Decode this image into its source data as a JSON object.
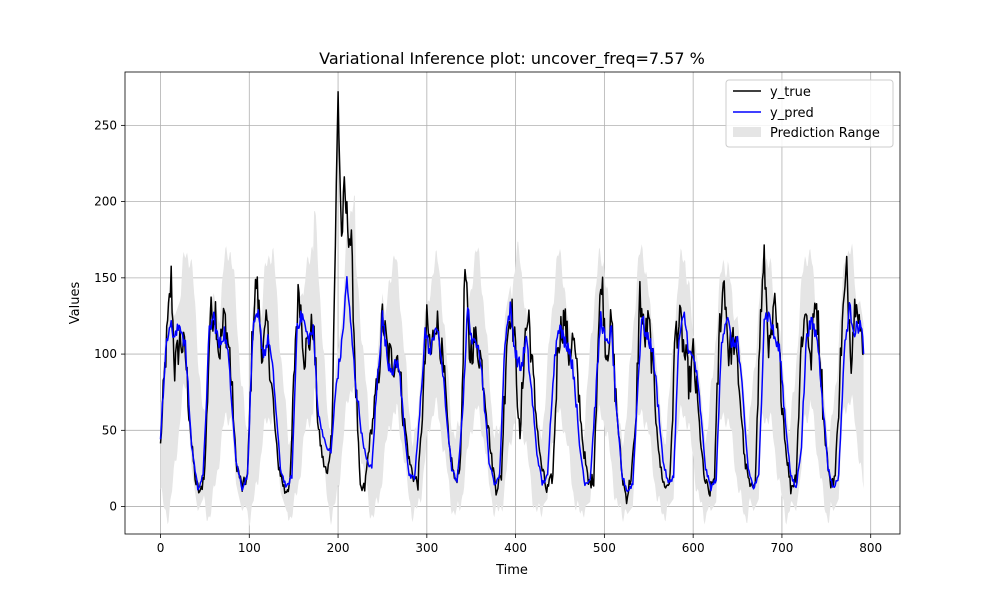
{
  "chart_data": {
    "type": "line",
    "title": "Variational Inference plot: uncover_freq=7.57 %",
    "xlabel": "Time",
    "ylabel": "Values",
    "xlim": [
      -40,
      833
    ],
    "ylim": [
      -18,
      285
    ],
    "xticks": [
      0,
      100,
      200,
      300,
      400,
      500,
      600,
      700,
      800
    ],
    "yticks": [
      0,
      50,
      100,
      150,
      200,
      250
    ],
    "grid": true,
    "legend_position": "top-right",
    "x_start": 0,
    "x_end": 792,
    "period": 46.6,
    "colors": {
      "y_true": "#000000",
      "y_pred": "#0000ff",
      "range": "#e5e5e5",
      "grid": "#b0b0b0"
    },
    "series": [
      {
        "name": "y_true",
        "keypoints": [
          [
            0,
            40
          ],
          [
            6,
            100
          ],
          [
            12,
            150
          ],
          [
            16,
            90
          ],
          [
            22,
            110
          ],
          [
            28,
            100
          ],
          [
            35,
            40
          ],
          [
            40,
            15
          ],
          [
            45,
            8
          ],
          [
            50,
            25
          ],
          [
            56,
            125
          ],
          [
            62,
            130
          ],
          [
            66,
            100
          ],
          [
            72,
            125
          ],
          [
            78,
            100
          ],
          [
            85,
            30
          ],
          [
            92,
            12
          ],
          [
            98,
            20
          ],
          [
            104,
            120
          ],
          [
            108,
            148
          ],
          [
            115,
            100
          ],
          [
            120,
            120
          ],
          [
            125,
            80
          ],
          [
            132,
            30
          ],
          [
            140,
            10
          ],
          [
            146,
            15
          ],
          [
            152,
            110
          ],
          [
            156,
            144
          ],
          [
            162,
            100
          ],
          [
            168,
            110
          ],
          [
            172,
            120
          ],
          [
            178,
            50
          ],
          [
            183,
            30
          ],
          [
            188,
            20
          ],
          [
            193,
            50
          ],
          [
            197,
            175
          ],
          [
            200,
            270
          ],
          [
            204,
            175
          ],
          [
            207,
            205
          ],
          [
            210,
            190
          ],
          [
            215,
            170
          ],
          [
            220,
            80
          ],
          [
            225,
            10
          ],
          [
            230,
            12
          ],
          [
            235,
            40
          ],
          [
            245,
            80
          ],
          [
            250,
            125
          ],
          [
            256,
            100
          ],
          [
            262,
            95
          ],
          [
            268,
            100
          ],
          [
            272,
            70
          ],
          [
            280,
            30
          ],
          [
            285,
            20
          ],
          [
            290,
            15
          ],
          [
            295,
            60
          ],
          [
            300,
            120
          ],
          [
            305,
            100
          ],
          [
            310,
            125
          ],
          [
            315,
            110
          ],
          [
            320,
            80
          ],
          [
            325,
            40
          ],
          [
            332,
            15
          ],
          [
            338,
            30
          ],
          [
            343,
            157
          ],
          [
            348,
            100
          ],
          [
            354,
            110
          ],
          [
            360,
            100
          ],
          [
            366,
            75
          ],
          [
            372,
            35
          ],
          [
            378,
            12
          ],
          [
            384,
            20
          ],
          [
            390,
            110
          ],
          [
            395,
            132
          ],
          [
            400,
            100
          ],
          [
            405,
            42
          ],
          [
            410,
            110
          ],
          [
            415,
            125
          ],
          [
            420,
            80
          ],
          [
            428,
            30
          ],
          [
            435,
            10
          ],
          [
            442,
            20
          ],
          [
            448,
            110
          ],
          [
            455,
            124
          ],
          [
            460,
            100
          ],
          [
            465,
            110
          ],
          [
            470,
            80
          ],
          [
            476,
            40
          ],
          [
            482,
            15
          ],
          [
            488,
            18
          ],
          [
            493,
            110
          ],
          [
            497,
            152
          ],
          [
            502,
            100
          ],
          [
            508,
            120
          ],
          [
            513,
            70
          ],
          [
            520,
            20
          ],
          [
            525,
            5
          ],
          [
            530,
            20
          ],
          [
            535,
            50
          ],
          [
            540,
            140
          ],
          [
            545,
            110
          ],
          [
            550,
            120
          ],
          [
            556,
            80
          ],
          [
            562,
            30
          ],
          [
            568,
            12
          ],
          [
            574,
            18
          ],
          [
            580,
            115
          ],
          [
            586,
            120
          ],
          [
            590,
            100
          ],
          [
            596,
            80
          ],
          [
            600,
            100
          ],
          [
            606,
            60
          ],
          [
            612,
            20
          ],
          [
            618,
            8
          ],
          [
            624,
            20
          ],
          [
            630,
            120
          ],
          [
            635,
            150
          ],
          [
            640,
            100
          ],
          [
            646,
            110
          ],
          [
            652,
            80
          ],
          [
            658,
            30
          ],
          [
            665,
            10
          ],
          [
            670,
            20
          ],
          [
            676,
            125
          ],
          [
            680,
            160
          ],
          [
            686,
            100
          ],
          [
            692,
            130
          ],
          [
            698,
            90
          ],
          [
            704,
            40
          ],
          [
            710,
            12
          ],
          [
            716,
            20
          ],
          [
            722,
            110
          ],
          [
            728,
            130
          ],
          [
            732,
            90
          ],
          [
            738,
            140
          ],
          [
            742,
            110
          ],
          [
            748,
            50
          ],
          [
            754,
            15
          ],
          [
            760,
            20
          ],
          [
            768,
            120
          ],
          [
            773,
            154
          ],
          [
            778,
            100
          ],
          [
            784,
            145
          ],
          [
            789,
            110
          ],
          [
            792,
            95
          ]
        ]
      },
      {
        "name": "y_pred",
        "keypoints": [
          [
            0,
            45
          ],
          [
            5,
            95
          ],
          [
            10,
            122
          ],
          [
            16,
            110
          ],
          [
            22,
            120
          ],
          [
            28,
            105
          ],
          [
            35,
            40
          ],
          [
            42,
            12
          ],
          [
            48,
            20
          ],
          [
            55,
            115
          ],
          [
            60,
            125
          ],
          [
            66,
            105
          ],
          [
            72,
            115
          ],
          [
            78,
            90
          ],
          [
            85,
            30
          ],
          [
            92,
            12
          ],
          [
            98,
            20
          ],
          [
            104,
            115
          ],
          [
            110,
            125
          ],
          [
            116,
            100
          ],
          [
            122,
            110
          ],
          [
            128,
            80
          ],
          [
            135,
            25
          ],
          [
            142,
            12
          ],
          [
            148,
            20
          ],
          [
            154,
            120
          ],
          [
            160,
            125
          ],
          [
            166,
            110
          ],
          [
            172,
            115
          ],
          [
            178,
            60
          ],
          [
            186,
            40
          ],
          [
            192,
            35
          ],
          [
            198,
            80
          ],
          [
            204,
            105
          ],
          [
            210,
            150
          ],
          [
            214,
            120
          ],
          [
            220,
            80
          ],
          [
            226,
            50
          ],
          [
            232,
            30
          ],
          [
            238,
            25
          ],
          [
            244,
            80
          ],
          [
            250,
            125
          ],
          [
            256,
            95
          ],
          [
            262,
            90
          ],
          [
            268,
            95
          ],
          [
            274,
            55
          ],
          [
            280,
            20
          ],
          [
            286,
            18
          ],
          [
            292,
            60
          ],
          [
            298,
            115
          ],
          [
            304,
            100
          ],
          [
            310,
            120
          ],
          [
            316,
            100
          ],
          [
            322,
            60
          ],
          [
            328,
            25
          ],
          [
            334,
            15
          ],
          [
            340,
            60
          ],
          [
            346,
            130
          ],
          [
            352,
            105
          ],
          [
            358,
            110
          ],
          [
            364,
            75
          ],
          [
            370,
            30
          ],
          [
            376,
            15
          ],
          [
            382,
            20
          ],
          [
            388,
            110
          ],
          [
            394,
            130
          ],
          [
            400,
            100
          ],
          [
            406,
            90
          ],
          [
            412,
            110
          ],
          [
            418,
            75
          ],
          [
            424,
            35
          ],
          [
            430,
            15
          ],
          [
            436,
            20
          ],
          [
            442,
            85
          ],
          [
            448,
            120
          ],
          [
            454,
            110
          ],
          [
            460,
            105
          ],
          [
            466,
            85
          ],
          [
            472,
            40
          ],
          [
            478,
            15
          ],
          [
            484,
            18
          ],
          [
            490,
            70
          ],
          [
            496,
            125
          ],
          [
            502,
            105
          ],
          [
            508,
            115
          ],
          [
            514,
            60
          ],
          [
            520,
            20
          ],
          [
            526,
            10
          ],
          [
            532,
            15
          ],
          [
            536,
            60
          ],
          [
            542,
            125
          ],
          [
            548,
            110
          ],
          [
            554,
            105
          ],
          [
            560,
            70
          ],
          [
            566,
            30
          ],
          [
            572,
            15
          ],
          [
            578,
            20
          ],
          [
            584,
            110
          ],
          [
            590,
            125
          ],
          [
            596,
            100
          ],
          [
            602,
            95
          ],
          [
            608,
            65
          ],
          [
            614,
            25
          ],
          [
            620,
            12
          ],
          [
            626,
            18
          ],
          [
            632,
            110
          ],
          [
            638,
            125
          ],
          [
            644,
            105
          ],
          [
            650,
            110
          ],
          [
            656,
            70
          ],
          [
            662,
            25
          ],
          [
            668,
            12
          ],
          [
            674,
            20
          ],
          [
            680,
            125
          ],
          [
            686,
            125
          ],
          [
            692,
            110
          ],
          [
            698,
            100
          ],
          [
            704,
            55
          ],
          [
            710,
            20
          ],
          [
            716,
            12
          ],
          [
            722,
            40
          ],
          [
            728,
            115
          ],
          [
            734,
            120
          ],
          [
            740,
            110
          ],
          [
            746,
            70
          ],
          [
            752,
            25
          ],
          [
            758,
            12
          ],
          [
            764,
            20
          ],
          [
            770,
            100
          ],
          [
            776,
            130
          ],
          [
            782,
            115
          ],
          [
            788,
            120
          ],
          [
            792,
            105
          ]
        ]
      }
    ],
    "band": {
      "name": "Prediction Range",
      "peak_upper": [
        167,
        170,
        167,
        170,
        200,
        162,
        160,
        165,
        165,
        163,
        162,
        167,
        165,
        160,
        165,
        167,
        170
      ],
      "peak_lower": [
        80,
        60,
        60,
        60,
        80,
        60,
        65,
        62,
        62,
        60,
        60,
        60,
        62,
        60,
        60,
        62,
        70
      ],
      "trough_upper": 45,
      "trough_lower": -5
    }
  }
}
